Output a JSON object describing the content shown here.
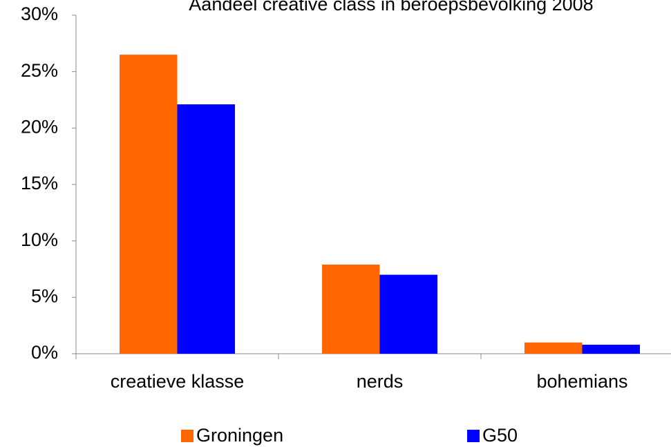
{
  "chart_data": {
    "type": "bar",
    "title": "Aandeel creative class in beroepsbevolking 2008",
    "categories": [
      "creatieve klasse",
      "nerds",
      "bohemians"
    ],
    "series": [
      {
        "name": "Groningen",
        "color": "#ff6600",
        "values": [
          26.5,
          7.9,
          1.0
        ]
      },
      {
        "name": "G50",
        "color": "#0000ff",
        "values": [
          22.1,
          7.0,
          0.8
        ]
      }
    ],
    "ylim": [
      0,
      30
    ],
    "yticks": [
      {
        "value": 0,
        "label": "0%"
      },
      {
        "value": 5,
        "label": "5%"
      },
      {
        "value": 10,
        "label": "10%"
      },
      {
        "value": 15,
        "label": "15%"
      },
      {
        "value": 20,
        "label": "20%"
      },
      {
        "value": 25,
        "label": "25%"
      },
      {
        "value": 30,
        "label": "30%"
      }
    ],
    "legend": "bottom"
  }
}
